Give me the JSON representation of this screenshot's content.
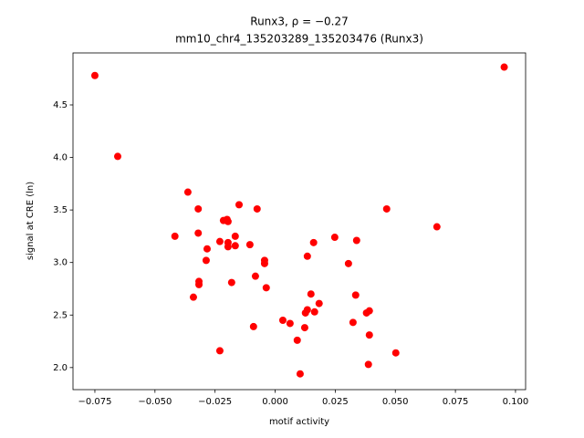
{
  "chart_data": {
    "type": "scatter",
    "title": "Runx3, ρ = −0.27",
    "subtitle": "mm10_chr4_135203289_135203476 (Runx3)",
    "x_label": "motif activity",
    "y_label": "signal at CRE (ln)",
    "color": "#ff0000",
    "xlim": [
      -0.0841,
      0.1042
    ],
    "ylim": [
      1.79,
      4.995
    ],
    "xticks": [
      {
        "value": -0.075,
        "label": "−0.075"
      },
      {
        "value": -0.05,
        "label": "−0.050"
      },
      {
        "value": -0.025,
        "label": "−0.025"
      },
      {
        "value": 0,
        "label": "0.000"
      },
      0.025,
      {
        "value": 0.05,
        "label": "0.050"
      },
      0.075,
      {
        "value": 0.1,
        "label": "0.100"
      }
    ],
    "yticks": [
      {
        "value": 2,
        "label": "2.0"
      },
      2.5,
      {
        "value": 3,
        "label": "3.0"
      },
      3.5,
      {
        "value": 4,
        "label": "4.0"
      },
      4.5
    ],
    "x": [
      -0.075,
      -0.0655,
      0.0953,
      -0.0417,
      -0.0363,
      -0.032,
      -0.032,
      -0.034,
      -0.0317,
      -0.0317,
      -0.0283,
      -0.0287,
      -0.023,
      -0.023,
      -0.0215,
      -0.02,
      -0.0196,
      -0.0196,
      -0.0196,
      -0.0181,
      -0.0166,
      -0.0166,
      -0.015,
      -0.0105,
      -0.0075,
      -0.0082,
      -0.009,
      -0.0044,
      -0.0044,
      -0.0037,
      0.0032,
      0.0062,
      0.0092,
      0.0104,
      0.0123,
      0.0126,
      0.0134,
      0.0134,
      0.0149,
      0.016,
      0.0164,
      0.0183,
      0.0248,
      0.0305,
      0.0324,
      0.0335,
      0.0339,
      0.038,
      0.0392,
      0.0392,
      0.0388,
      0.0464,
      0.0502,
      0.0673
    ],
    "values": [
      4.78,
      4.01,
      4.86,
      3.25,
      3.67,
      3.51,
      3.28,
      2.67,
      2.82,
      2.79,
      3.13,
      3.02,
      2.16,
      3.2,
      3.4,
      3.41,
      3.39,
      3.19,
      3.15,
      2.81,
      3.25,
      3.16,
      3.55,
      3.17,
      3.51,
      2.87,
      2.39,
      3.02,
      2.99,
      2.76,
      2.45,
      2.42,
      2.26,
      1.94,
      2.38,
      2.52,
      2.55,
      3.06,
      2.7,
      3.19,
      2.53,
      2.61,
      3.24,
      2.99,
      2.43,
      2.69,
      3.21,
      2.52,
      2.54,
      2.31,
      2.03,
      3.51,
      2.14,
      3.34
    ]
  }
}
